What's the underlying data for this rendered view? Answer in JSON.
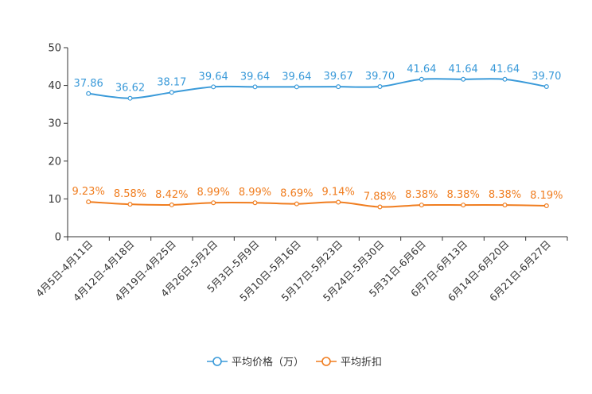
{
  "chart_data": {
    "type": "line",
    "title": "",
    "xlabel": "",
    "ylabel": "",
    "ylim": [
      0,
      50
    ],
    "yticks": [
      0,
      10,
      20,
      30,
      40,
      50
    ],
    "grid": false,
    "legend_position": "bottom-center",
    "categories": [
      "4月5日-4月11日",
      "4月12日-4月18日",
      "4月19日-4月25日",
      "4月26日-5月2日",
      "5月3日-5月9日",
      "5月10日-5月16日",
      "5月17日-5月23日",
      "5月24日-5月30日",
      "5月31日-6月6日",
      "6月7日-6月13日",
      "6月14日-6月20日",
      "6月21日-6月27日"
    ],
    "series": [
      {
        "name": "平均价格（万）",
        "color": "#3a9ad9",
        "values": [
          37.86,
          36.62,
          38.17,
          39.64,
          39.64,
          39.64,
          39.67,
          39.7,
          41.64,
          41.64,
          41.64,
          39.7
        ],
        "labels": [
          "37.86",
          "36.62",
          "38.17",
          "39.64",
          "39.64",
          "39.64",
          "39.67",
          "39.70",
          "41.64",
          "41.64",
          "41.64",
          "39.70"
        ]
      },
      {
        "name": "平均折扣",
        "color": "#f07d1f",
        "values": [
          9.23,
          8.58,
          8.42,
          8.99,
          8.99,
          8.69,
          9.14,
          7.88,
          8.38,
          8.38,
          8.38,
          8.19
        ],
        "labels": [
          "9.23%",
          "8.58%",
          "8.42%",
          "8.99%",
          "8.99%",
          "8.69%",
          "9.14%",
          "7.88%",
          "8.38%",
          "8.38%",
          "8.38%",
          "8.19%"
        ]
      }
    ]
  }
}
